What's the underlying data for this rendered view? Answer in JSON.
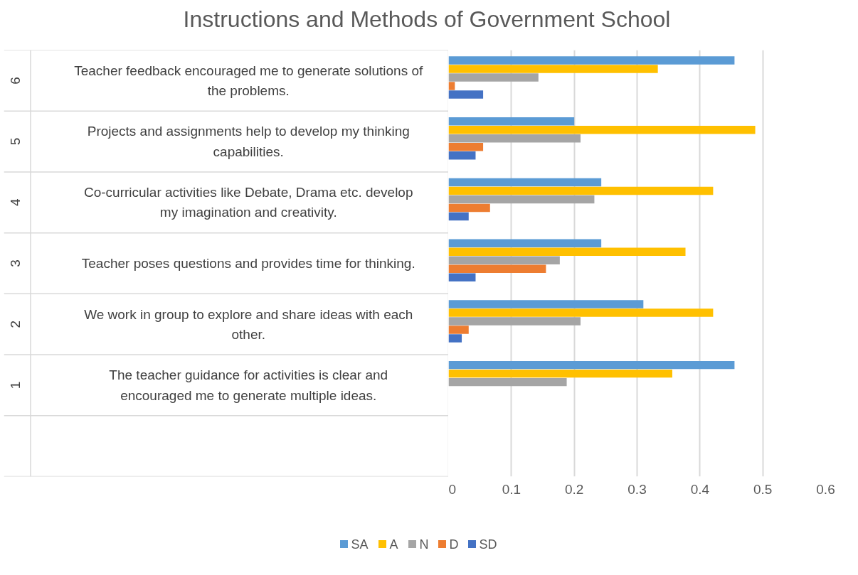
{
  "chart_data": {
    "type": "bar",
    "orientation": "horizontal",
    "title": "Instructions and Methods of Government School",
    "categories": [
      "Teacher feedback encouraged me to generate solutions of the problems.",
      "Projects and assignments help to develop my thinking capabilities.",
      "Co-curricular activities like Debate, Drama etc. develop my imagination and creativity.",
      "Teacher poses questions and provides time for thinking.",
      "We work in group to explore and share ideas with each other.",
      "The teacher guidance for activities is clear and encouraged me to generate multiple ideas.",
      null
    ],
    "annotations": [
      "6",
      "5",
      "4",
      "3",
      "2",
      "1"
    ],
    "series": [
      {
        "name": "SA",
        "color": "#5b9bd5",
        "values": [
          0.455,
          0.2,
          0.243,
          0.243,
          0.31,
          0.455,
          null
        ]
      },
      {
        "name": "A",
        "color": "#ffc000",
        "values": [
          0.333,
          0.488,
          0.421,
          0.377,
          0.421,
          0.356,
          null
        ]
      },
      {
        "name": "N",
        "color": "#a5a5a5",
        "values": [
          0.143,
          0.21,
          0.232,
          0.177,
          0.21,
          0.188,
          null
        ]
      },
      {
        "name": "D",
        "color": "#ed7d31",
        "values": [
          0.01,
          0.055,
          0.066,
          0.155,
          0.032,
          0,
          null
        ]
      },
      {
        "name": "SD",
        "color": "#4472c4",
        "values": [
          0.055,
          0.043,
          0.032,
          0.043,
          0.021,
          0,
          null
        ]
      }
    ],
    "xlim": [
      0,
      0.6
    ],
    "xticks": [
      0,
      0.1,
      0.2,
      0.3,
      0.4,
      0.5,
      0.6
    ],
    "grid": "x",
    "legend": "bottom"
  }
}
